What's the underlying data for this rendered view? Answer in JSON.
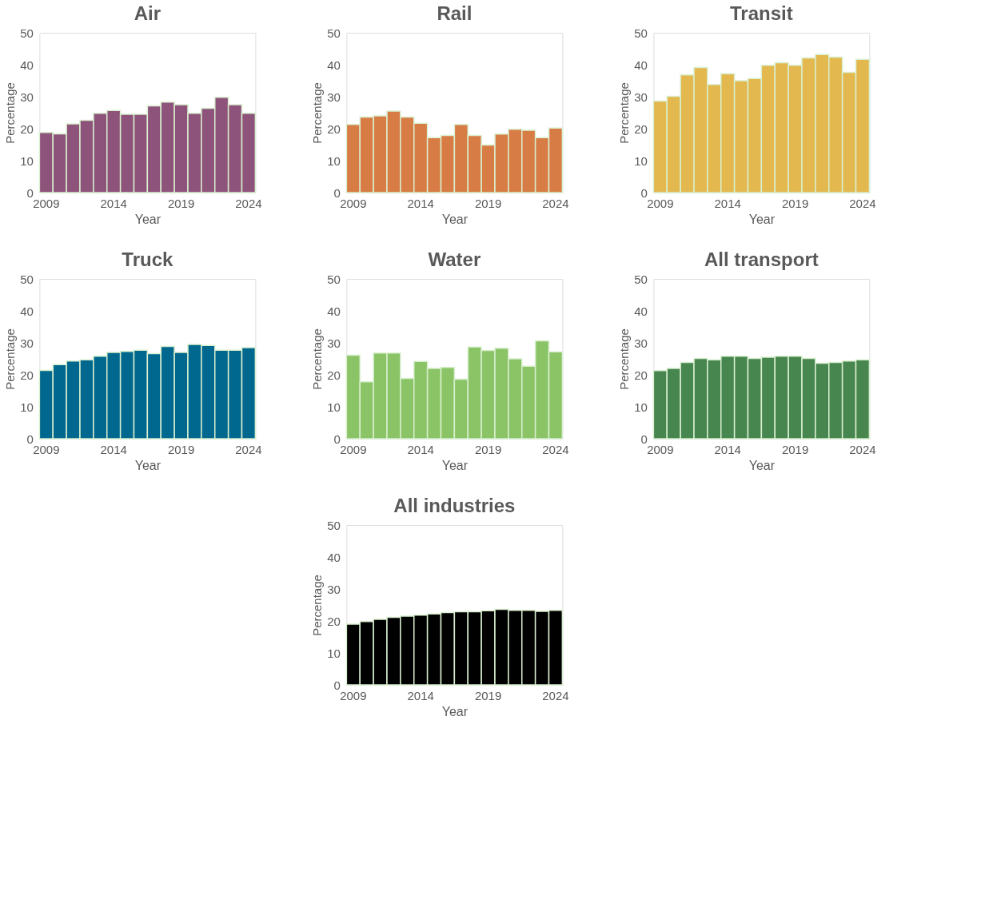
{
  "chart_data": [
    {
      "type": "bar",
      "title": "Air",
      "xlabel": "Year",
      "ylabel": "Percentage",
      "categories": [
        "2009",
        null,
        null,
        null,
        null,
        "2014",
        null,
        null,
        null,
        null,
        "2019",
        null,
        null,
        null,
        null,
        "2024"
      ],
      "values": [
        18.8,
        18.4,
        21.5,
        22.6,
        24.8,
        25.7,
        24.5,
        24.5,
        27.1,
        28.3,
        27.5,
        24.8,
        26.4,
        29.8,
        27.5,
        24.8
      ],
      "color": "#8e537a",
      "ylim": [
        0,
        50
      ],
      "yticks": [
        0,
        10,
        20,
        30,
        40,
        50
      ],
      "grid": false
    },
    {
      "type": "bar",
      "title": "Rail",
      "xlabel": "Year",
      "ylabel": "Percentage",
      "categories": [
        "2009",
        null,
        null,
        null,
        null,
        "2014",
        null,
        null,
        null,
        null,
        "2019",
        null,
        null,
        null,
        null,
        "2024"
      ],
      "values": [
        21.3,
        23.6,
        24.0,
        25.5,
        23.6,
        21.7,
        17.2,
        17.9,
        21.3,
        17.9,
        14.9,
        18.3,
        19.8,
        19.5,
        17.2,
        20.2
      ],
      "color": "#d87c45",
      "ylim": [
        0,
        50
      ],
      "yticks": [
        0,
        10,
        20,
        30,
        40,
        50
      ],
      "grid": false
    },
    {
      "type": "bar",
      "title": "Transit",
      "xlabel": "Year",
      "ylabel": "Percentage",
      "categories": [
        "2009",
        null,
        null,
        null,
        null,
        "2014",
        null,
        null,
        null,
        null,
        "2019",
        null,
        null,
        null,
        null,
        "2024"
      ],
      "values": [
        28.6,
        30.1,
        36.8,
        39.1,
        33.8,
        37.2,
        35.0,
        35.7,
        39.8,
        40.6,
        39.8,
        42.1,
        43.2,
        42.4,
        37.6,
        41.7
      ],
      "color": "#e3b84f",
      "ylim": [
        0,
        50
      ],
      "yticks": [
        0,
        10,
        20,
        30,
        40,
        50
      ],
      "grid": false
    },
    {
      "type": "bar",
      "title": "Truck",
      "xlabel": "Year",
      "ylabel": "Percentage",
      "categories": [
        "2009",
        null,
        null,
        null,
        null,
        "2014",
        null,
        null,
        null,
        null,
        "2019",
        null,
        null,
        null,
        null,
        "2024"
      ],
      "values": [
        21.4,
        23.2,
        24.3,
        24.7,
        25.8,
        27.0,
        27.3,
        27.7,
        26.6,
        28.9,
        27.0,
        29.5,
        29.2,
        27.7,
        27.7,
        28.5
      ],
      "color": "#00678e",
      "ylim": [
        0,
        50
      ],
      "yticks": [
        0,
        10,
        20,
        30,
        40,
        50
      ],
      "grid": false
    },
    {
      "type": "bar",
      "title": "Water",
      "xlabel": "Year",
      "ylabel": "Percentage",
      "categories": [
        "2009",
        null,
        null,
        null,
        null,
        "2014",
        null,
        null,
        null,
        null,
        "2019",
        null,
        null,
        null,
        null,
        "2024"
      ],
      "values": [
        26.1,
        17.8,
        26.8,
        26.8,
        18.9,
        24.2,
        22.0,
        22.3,
        18.6,
        28.7,
        27.6,
        28.3,
        25.0,
        22.7,
        30.6,
        27.2
      ],
      "color": "#8bc466",
      "ylim": [
        0,
        50
      ],
      "yticks": [
        0,
        10,
        20,
        30,
        40,
        50
      ],
      "grid": false
    },
    {
      "type": "bar",
      "title": "All transport",
      "xlabel": "Year",
      "ylabel": "Percentage",
      "categories": [
        "2009",
        null,
        null,
        null,
        null,
        "2014",
        null,
        null,
        null,
        null,
        "2019",
        null,
        null,
        null,
        null,
        "2024"
      ],
      "values": [
        21.3,
        22.0,
        23.9,
        25.1,
        24.7,
        25.8,
        25.8,
        25.1,
        25.5,
        25.8,
        25.8,
        25.1,
        23.6,
        23.9,
        24.3,
        24.7
      ],
      "color": "#488650",
      "ylim": [
        0,
        50
      ],
      "yticks": [
        0,
        10,
        20,
        30,
        40,
        50
      ],
      "grid": false
    },
    {
      "type": "bar",
      "title": "All industries",
      "xlabel": "Year",
      "ylabel": "Percentage",
      "categories": [
        "2009",
        null,
        null,
        null,
        null,
        "2014",
        null,
        null,
        null,
        null,
        "2019",
        null,
        null,
        null,
        null,
        "2024"
      ],
      "values": [
        19.0,
        19.8,
        20.5,
        21.1,
        21.5,
        21.8,
        22.2,
        22.6,
        22.9,
        22.9,
        23.2,
        23.6,
        23.3,
        23.3,
        23.0,
        23.3
      ],
      "color": "#000000",
      "ylim": [
        0,
        50
      ],
      "yticks": [
        0,
        10,
        20,
        30,
        40,
        50
      ],
      "grid": false
    }
  ]
}
